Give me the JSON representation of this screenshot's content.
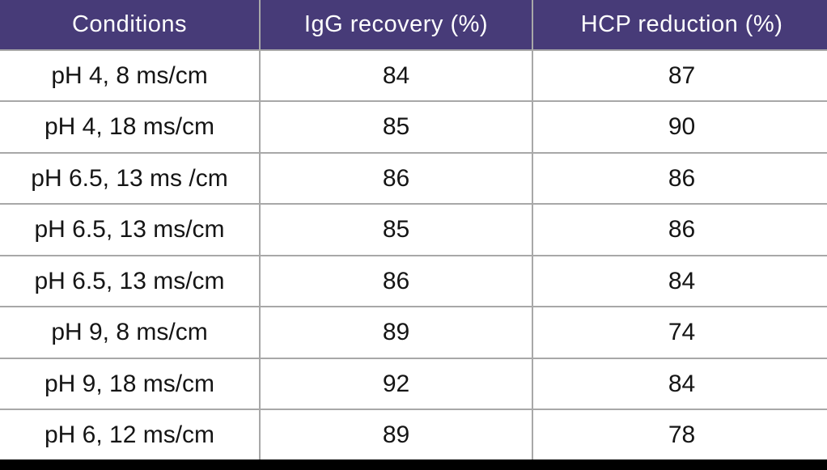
{
  "chart_data": {
    "type": "table",
    "columns": [
      "Conditions",
      "IgG recovery (%)",
      "HCP reduction (%)"
    ],
    "rows": [
      [
        "pH 4, 8 ms/cm",
        "84",
        "87"
      ],
      [
        "pH 4, 18 ms/cm",
        "85",
        "90"
      ],
      [
        "pH 6.5, 13 ms /cm",
        "86",
        "86"
      ],
      [
        "pH 6.5, 13 ms/cm",
        "85",
        "86"
      ],
      [
        "pH 6.5, 13 ms/cm",
        "86",
        "84"
      ],
      [
        "pH 9, 8 ms/cm",
        "89",
        "74"
      ],
      [
        "pH 9, 18 ms/cm",
        "92",
        "84"
      ],
      [
        "pH 6, 12 ms/cm",
        "89",
        "78"
      ]
    ]
  },
  "colors": {
    "header_bg": "#473b78",
    "header_text": "#ffffff",
    "grid_line": "#a8a8a8",
    "body_text": "#151515",
    "bottom_bar": "#000000"
  }
}
